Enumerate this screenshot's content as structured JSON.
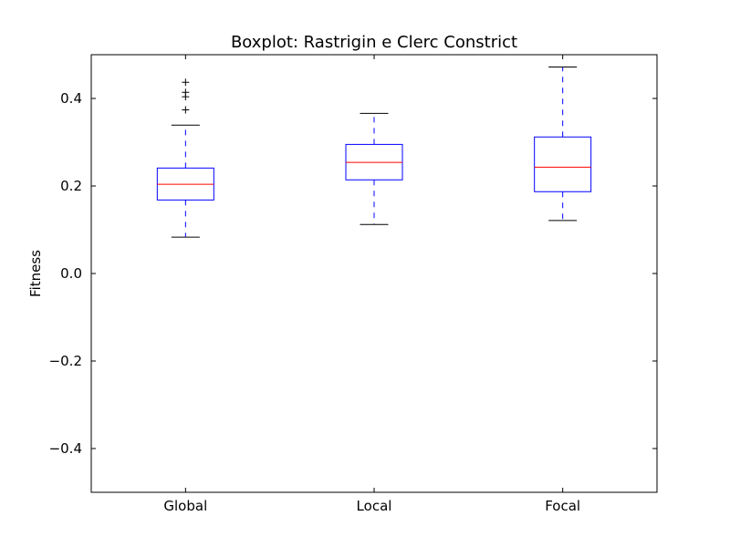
{
  "chart_data": {
    "type": "box",
    "title": "Boxplot: Rastrigin e Clerc Constrict",
    "xlabel": "",
    "ylabel": "Fitness",
    "ylim": [
      -0.5,
      0.5
    ],
    "yticks": [
      {
        "value": -0.4,
        "label": "−0.4"
      },
      {
        "value": -0.2,
        "label": "−0.2"
      },
      {
        "value": 0.0,
        "label": "0.0"
      },
      {
        "value": 0.2,
        "label": "0.2"
      },
      {
        "value": 0.4,
        "label": "0.4"
      }
    ],
    "grid": false,
    "colors": {
      "box": "#0000ff",
      "median": "#ff0000",
      "whisker": "#0000ff",
      "cap": "#000000",
      "flier": "#000000"
    },
    "boxes": [
      {
        "label": "Global",
        "whisker_low": 0.083,
        "q1": 0.168,
        "median": 0.204,
        "q3": 0.241,
        "whisker_high": 0.339,
        "fliers": [
          0.374,
          0.404,
          0.414,
          0.437
        ]
      },
      {
        "label": "Local",
        "whisker_low": 0.112,
        "q1": 0.214,
        "median": 0.254,
        "q3": 0.295,
        "whisker_high": 0.366,
        "fliers": []
      },
      {
        "label": "Focal",
        "whisker_low": 0.121,
        "q1": 0.187,
        "median": 0.243,
        "q3": 0.312,
        "whisker_high": 0.472,
        "fliers": []
      }
    ]
  }
}
